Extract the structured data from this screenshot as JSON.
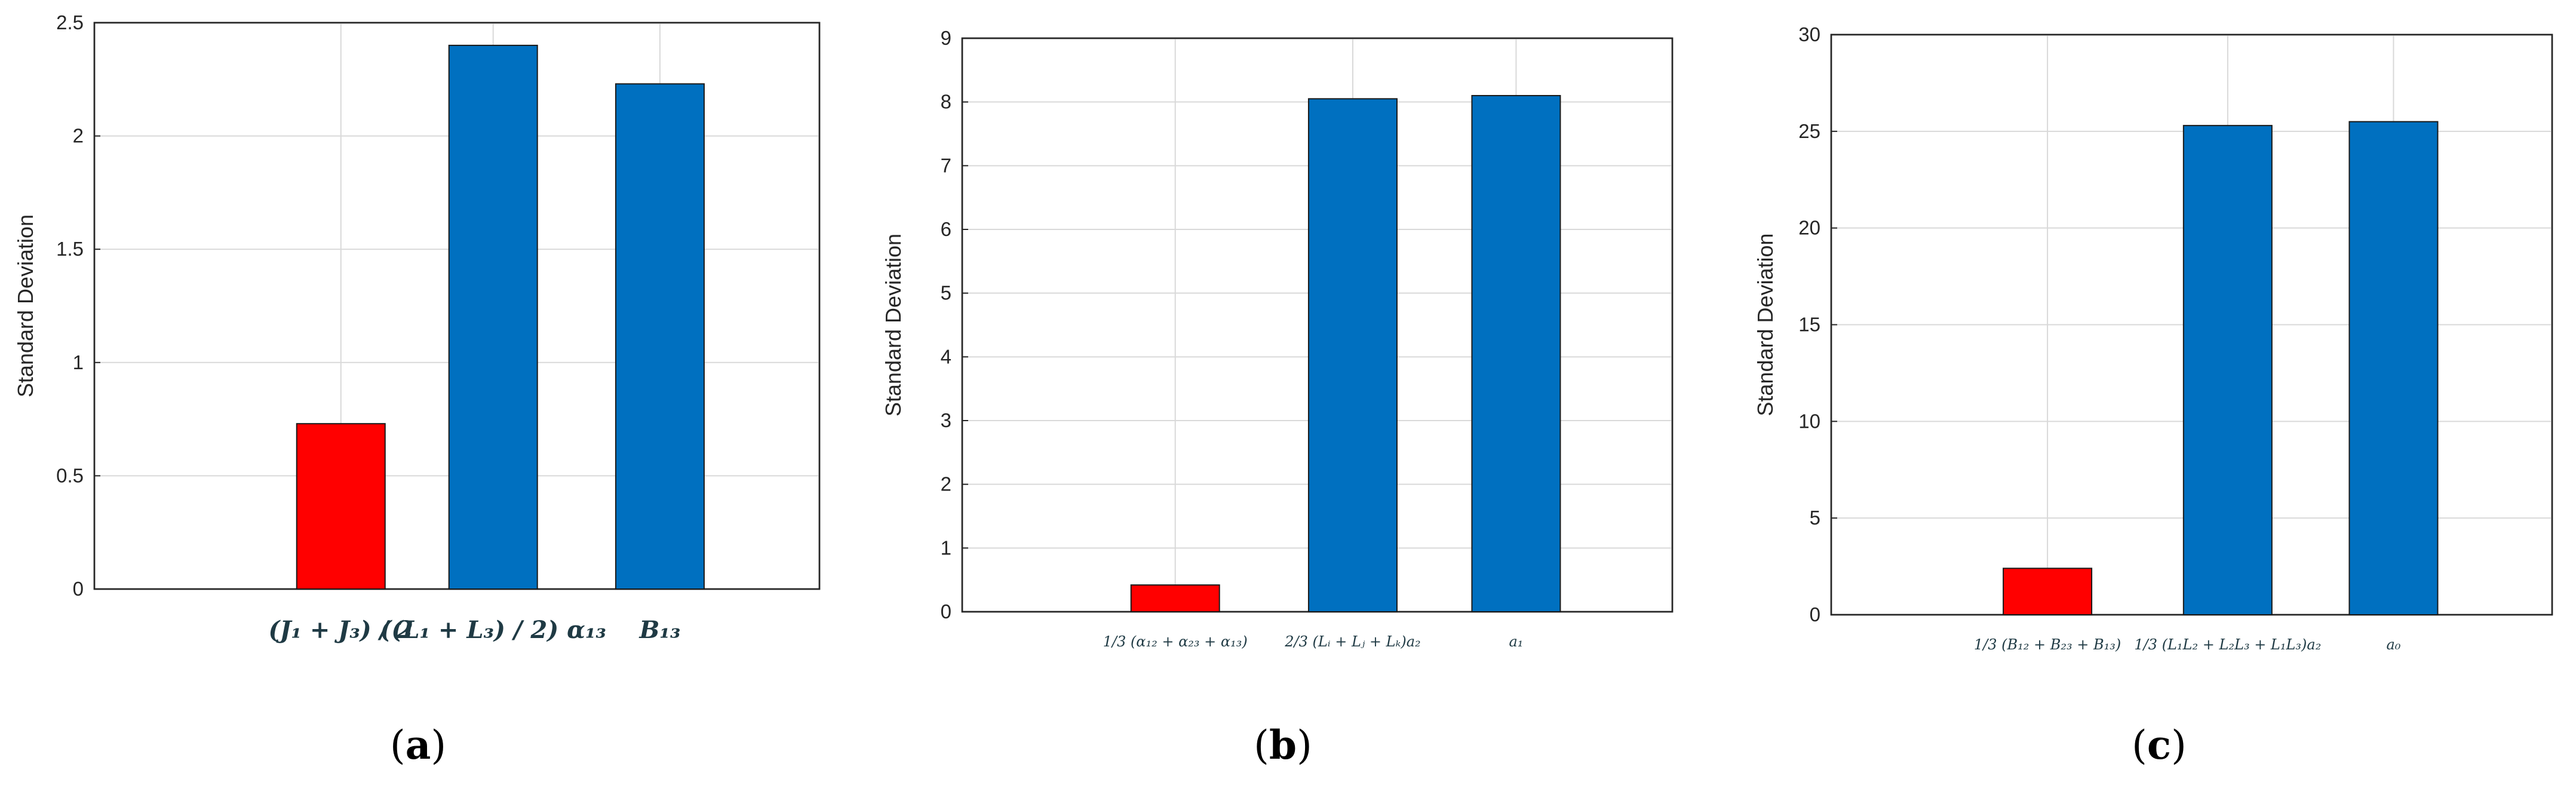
{
  "chart_data": [
    {
      "type": "bar",
      "ylabel": "Standard Deviation",
      "ylim": [
        0,
        2.5
      ],
      "yticks": [
        "0",
        "0.5",
        "1",
        "1.5",
        "2",
        "2.5"
      ],
      "categories": [
        "(J₁ + J₃) / 2",
        "((L₁ + L₃) / 2) α₁₃",
        "B₁₃"
      ],
      "values": [
        0.73,
        2.4,
        2.23
      ],
      "bar_colors": [
        "#ff0000",
        "#0070c0",
        "#0070c0"
      ],
      "grid": true,
      "panel_label": {
        "open": "(",
        "letter": "a",
        "close": ")"
      }
    },
    {
      "type": "bar",
      "ylabel": "Standard Deviation",
      "ylim": [
        0,
        9
      ],
      "yticks": [
        "0",
        "1",
        "2",
        "3",
        "4",
        "5",
        "6",
        "7",
        "8",
        "9"
      ],
      "categories": [
        "1/3 (α₁₂ + α₂₃ + α₁₃)",
        "2/3 (Lᵢ + Lⱼ + Lₖ)a₂",
        "a₁"
      ],
      "values": [
        0.42,
        8.05,
        8.1
      ],
      "bar_colors": [
        "#ff0000",
        "#0070c0",
        "#0070c0"
      ],
      "grid": true,
      "panel_label": {
        "open": "(",
        "letter": "b",
        "close": ")"
      }
    },
    {
      "type": "bar",
      "ylabel": "Standard Deviation",
      "ylim": [
        0,
        30
      ],
      "yticks": [
        "0",
        "5",
        "10",
        "15",
        "20",
        "25",
        "30"
      ],
      "categories": [
        "1/3 (B₁₂ + B₂₃ + B₁₃)",
        "1/3 (L₁L₂ + L₂L₃ + L₁L₃)a₂",
        "a₀"
      ],
      "values": [
        2.4,
        25.3,
        25.5
      ],
      "bar_colors": [
        "#ff0000",
        "#0070c0",
        "#0070c0"
      ],
      "grid": true,
      "panel_label": {
        "open": "(",
        "letter": "c",
        "close": ")"
      }
    }
  ]
}
